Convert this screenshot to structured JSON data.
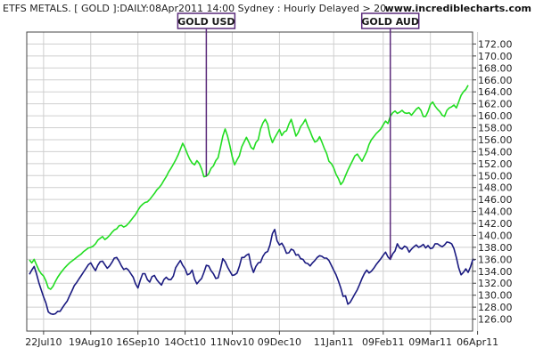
{
  "header": {
    "title": "ETFS METALS. [ GOLD ]:DAILY:08Apr2011 14:00 Sydney : Hourly Delayed > 20..",
    "url": "www.incrediblecharts.com"
  },
  "colors": {
    "gold_usd": "#22dd22",
    "gold_aud": "#1a1a80",
    "grid": "#cfcfcf",
    "annotation": "#5a2a7a"
  },
  "chart_data": {
    "type": "line",
    "title": "ETFS METALS. [ GOLD ]:DAILY:08Apr2011 14:00 Sydney : Hourly Delayed > 20..",
    "xlabel": "",
    "ylabel": "",
    "ylim": [
      124,
      174
    ],
    "y_ticks": [
      "126.00",
      "128.00",
      "130.00",
      "132.00",
      "134.00",
      "136.00",
      "138.00",
      "140.00",
      "142.00",
      "144.00",
      "146.00",
      "148.00",
      "150.00",
      "152.00",
      "154.00",
      "156.00",
      "158.00",
      "160.00",
      "162.00",
      "164.00",
      "166.00",
      "168.00",
      "170.00",
      "172.00"
    ],
    "x_ticks": [
      "22Jul10",
      "19Aug10",
      "16Sep10",
      "14Oct10",
      "11Nov10",
      "09Dec10",
      "11Jan11",
      "09Feb11",
      "09Mar11",
      "06Apr11"
    ],
    "x_tick_idx": [
      6,
      26,
      46,
      66,
      86,
      106,
      129,
      150,
      170,
      190
    ],
    "grid": true,
    "legend": "annotation labels at top",
    "annotations": [
      {
        "label": "GOLD USD",
        "series": 0,
        "index": 75
      },
      {
        "label": "GOLD AUD",
        "series": 1,
        "index": 153
      }
    ],
    "series": [
      {
        "name": "GOLD USD",
        "values": [
          135.9,
          135.4,
          136.0,
          135.1,
          134.2,
          133.6,
          133.2,
          132.4,
          131.2,
          131.0,
          131.5,
          132.3,
          133.0,
          133.6,
          134.1,
          134.6,
          135.0,
          135.4,
          135.7,
          136.0,
          136.3,
          136.6,
          136.9,
          137.3,
          137.6,
          137.9,
          138.0,
          138.2,
          138.6,
          139.2,
          139.5,
          139.8,
          139.3,
          139.6,
          140.0,
          140.5,
          140.9,
          141.1,
          141.6,
          141.7,
          141.4,
          141.6,
          142.0,
          142.5,
          143.0,
          143.5,
          144.2,
          144.8,
          145.2,
          145.5,
          145.6,
          146.0,
          146.5,
          147.0,
          147.6,
          148.0,
          148.5,
          149.2,
          149.8,
          150.6,
          151.2,
          151.9,
          152.6,
          153.4,
          154.4,
          155.4,
          154.6,
          153.6,
          152.7,
          152.1,
          151.8,
          152.5,
          152.0,
          151.1,
          149.8,
          149.9,
          150.3,
          151.2,
          151.6,
          152.5,
          153.0,
          154.8,
          156.6,
          157.8,
          156.6,
          155.0,
          153.1,
          151.8,
          152.6,
          153.3,
          154.8,
          155.6,
          156.4,
          155.6,
          154.7,
          154.4,
          155.5,
          156.0,
          157.8,
          158.8,
          159.4,
          158.6,
          156.7,
          155.5,
          156.3,
          157.0,
          157.7,
          156.7,
          157.3,
          157.5,
          158.6,
          159.4,
          158.0,
          156.6,
          157.2,
          158.2,
          158.7,
          159.4,
          158.3,
          157.4,
          156.4,
          155.6,
          155.8,
          156.5,
          155.6,
          154.6,
          153.7,
          152.4,
          152.0,
          151.3,
          150.2,
          149.5,
          148.5,
          149.0,
          150.0,
          150.9,
          151.7,
          152.5,
          153.3,
          153.6,
          153.0,
          152.4,
          153.2,
          154.0,
          155.2,
          156.0,
          156.5,
          157.0,
          157.4,
          157.8,
          158.5,
          159.1,
          158.7,
          159.9,
          160.5,
          160.8,
          160.4,
          160.6,
          160.9,
          160.5,
          160.4,
          160.5,
          160.1,
          160.6,
          161.1,
          161.4,
          160.9,
          159.9,
          159.9,
          160.7,
          161.9,
          162.3,
          161.6,
          161.1,
          160.7,
          160.1,
          159.9,
          160.9,
          161.3,
          161.5,
          161.8,
          161.3,
          162.3,
          163.4,
          164.0,
          164.4,
          165.1
        ]
      },
      {
        "name": "GOLD AUD",
        "values": [
          133.5,
          134.2,
          134.8,
          133.6,
          132.1,
          130.9,
          129.7,
          128.7,
          127.2,
          126.9,
          126.8,
          126.9,
          127.3,
          127.3,
          127.9,
          128.5,
          129.0,
          129.9,
          130.7,
          131.6,
          132.1,
          132.7,
          133.3,
          133.9,
          134.5,
          135.1,
          135.4,
          134.7,
          134.1,
          135.0,
          135.6,
          135.7,
          135.1,
          134.5,
          134.9,
          135.5,
          136.2,
          136.3,
          135.7,
          134.9,
          134.3,
          134.5,
          134.2,
          133.6,
          133.0,
          131.9,
          131.2,
          132.5,
          133.6,
          133.6,
          132.6,
          132.2,
          133.1,
          133.3,
          132.6,
          132.1,
          131.7,
          132.6,
          133.0,
          132.6,
          132.6,
          133.2,
          134.6,
          135.2,
          135.8,
          135.0,
          134.4,
          133.4,
          133.6,
          134.2,
          132.7,
          131.9,
          132.4,
          132.8,
          133.8,
          135.0,
          134.9,
          134.1,
          133.6,
          132.8,
          132.9,
          134.4,
          136.1,
          135.6,
          134.7,
          134.0,
          133.3,
          133.4,
          133.7,
          134.8,
          136.3,
          136.3,
          136.7,
          136.9,
          135.0,
          133.8,
          134.8,
          135.4,
          135.5,
          136.5,
          137.1,
          137.3,
          138.4,
          140.3,
          141.0,
          139.1,
          138.4,
          138.7,
          138.0,
          137.0,
          137.1,
          137.7,
          137.5,
          136.7,
          136.8,
          136.1,
          136.0,
          135.4,
          135.3,
          134.9,
          135.4,
          135.8,
          136.3,
          136.6,
          136.5,
          136.2,
          136.2,
          135.8,
          135.0,
          134.2,
          133.4,
          132.4,
          131.2,
          129.8,
          129.9,
          128.5,
          128.8,
          129.5,
          130.2,
          130.9,
          131.8,
          132.8,
          133.6,
          134.2,
          133.7,
          134.0,
          134.5,
          135.1,
          135.6,
          136.1,
          136.7,
          137.2,
          136.4,
          136.0,
          136.9,
          137.4,
          138.6,
          137.9,
          137.7,
          138.2,
          138.0,
          137.2,
          137.7,
          138.1,
          138.4,
          138.0,
          138.2,
          138.5,
          137.9,
          138.3,
          137.8,
          137.9,
          138.6,
          138.6,
          138.3,
          138.1,
          138.4,
          138.9,
          138.8,
          138.6,
          137.8,
          136.3,
          134.6,
          133.4,
          133.8,
          134.4,
          133.8,
          134.7,
          136.0,
          135.9
        ]
      }
    ]
  }
}
